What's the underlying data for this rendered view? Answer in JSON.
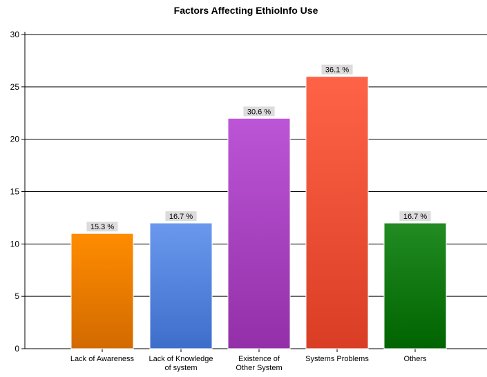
{
  "chart_data": {
    "type": "bar",
    "title": "Factors Affecting EthioInfo Use",
    "xlabel": "",
    "ylabel": "",
    "ylim": [
      0,
      30
    ],
    "yticks": [
      0,
      5,
      10,
      15,
      20,
      25,
      30
    ],
    "grid": true,
    "legend": "none",
    "categories": [
      [
        "Lack of Awareness"
      ],
      [
        "Lack of Knowledge",
        "of system"
      ],
      [
        "Existence of",
        "Other System"
      ],
      [
        "Systems Problems"
      ],
      [
        "Others"
      ]
    ],
    "values": [
      11,
      12,
      22,
      26,
      12
    ],
    "data_labels": [
      "15.3 %",
      "16.7 %",
      "30.6 %",
      "36.1 %",
      "16.7 %"
    ],
    "colors": [
      [
        "#FF8C00",
        "#D26A00"
      ],
      [
        "#6A98EE",
        "#3D6ECA"
      ],
      [
        "#BC55D6",
        "#9330A8"
      ],
      [
        "#FF6347",
        "#D93E25"
      ],
      [
        "#228B22",
        "#006400"
      ]
    ]
  }
}
